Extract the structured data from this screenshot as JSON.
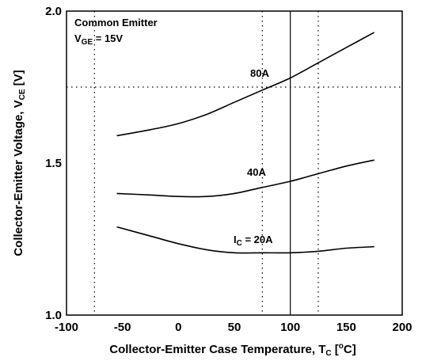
{
  "chart_data": {
    "type": "line",
    "xlabel": "Collector-Emitter Case Temperature, T",
    "xlabel_sub": "C",
    "xlabel_unit_pre": " [",
    "xlabel_unit_sup": "o",
    "xlabel_unit_post": "C]",
    "ylabel": "Collector-Emitter Voltage, V",
    "ylabel_sub": "CE",
    "ylabel_unit": " [V]",
    "xlim": [
      -100,
      200
    ],
    "ylim": [
      1.0,
      2.0
    ],
    "xticks": [
      "-100",
      "-50",
      "0",
      "50",
      "100",
      "150",
      "200"
    ],
    "yticks": [
      "1.0",
      "1.5",
      "2.0"
    ],
    "grid": "dotted",
    "annotation_line1": "Common Emitter",
    "annotation_line2_main": "V",
    "annotation_line2_sub": "GE",
    "annotation_line2_rest": " = 15V",
    "series": [
      {
        "name": "80A",
        "x": [
          -55,
          -25,
          0,
          25,
          50,
          75,
          100,
          125,
          150,
          175
        ],
        "values": [
          1.59,
          1.61,
          1.63,
          1.66,
          1.7,
          1.74,
          1.78,
          1.83,
          1.88,
          1.93
        ]
      },
      {
        "name": "40A",
        "x": [
          -55,
          -25,
          0,
          25,
          50,
          75,
          100,
          125,
          150,
          175
        ],
        "values": [
          1.4,
          1.395,
          1.39,
          1.39,
          1.4,
          1.42,
          1.44,
          1.465,
          1.49,
          1.51
        ]
      },
      {
        "name_main": "I",
        "name_sub": "C",
        "name_rest": " = 20A",
        "x": [
          -55,
          -25,
          0,
          25,
          50,
          75,
          100,
          125,
          150,
          175
        ],
        "values": [
          1.29,
          1.26,
          1.235,
          1.215,
          1.205,
          1.205,
          1.205,
          1.21,
          1.22,
          1.225
        ]
      }
    ],
    "vertical_line": 100
  }
}
